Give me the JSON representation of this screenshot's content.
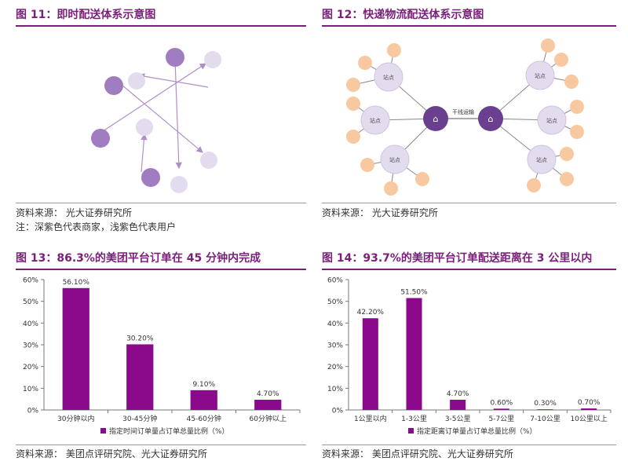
{
  "fig11": {
    "title": "图 11：即时配送体系示意图",
    "source": "资料来源：  光大证券研究所",
    "note": "注：深紫色代表商家，浅紫色代表用户"
  },
  "fig12": {
    "title": "图 12：快递物流配送体系示意图",
    "source": "资料来源：  光大证券研究所",
    "trunk_label": "干线运输",
    "station_label": "站点"
  },
  "colors": {
    "accent": "#7a1f7a",
    "bar": "#8b0a8b",
    "merchant": "#a07cc0",
    "user": "#e3dcef",
    "hub": "#6b3f8f",
    "leaf": "#f8c9a0"
  },
  "chart_data": [
    {
      "type": "bar",
      "title": "图 13：86.3%的美团平台订单在 45 分钟内完成",
      "categories": [
        "30分钟以内",
        "30-45分钟",
        "45-60分钟",
        "60分钟以上"
      ],
      "values": [
        56.1,
        30.2,
        9.1,
        4.7
      ],
      "value_labels": [
        "56.10%",
        "30.20%",
        "9.10%",
        "4.70%"
      ],
      "yticks": [
        "0%",
        "10%",
        "20%",
        "30%",
        "40%",
        "50%",
        "60%"
      ],
      "ylim": [
        0,
        60
      ],
      "legend": "指定时间订单量占订单总量比例（%）",
      "legend_position": "bottom",
      "grid": false,
      "source": "资料来源：  美团点评研究院、光大证券研究所"
    },
    {
      "type": "bar",
      "title": "图 14：93.7%的美团平台订单配送距离在 3 公里以内",
      "categories": [
        "1公里以内",
        "1-3公里",
        "3-5公里",
        "5-7公里",
        "7-10公里",
        "10公里以上"
      ],
      "values": [
        42.2,
        51.5,
        4.7,
        0.6,
        0.3,
        0.7
      ],
      "value_labels": [
        "42.20%",
        "51.50%",
        "4.70%",
        "0.60%",
        "0.30%",
        "0.70%"
      ],
      "yticks": [
        "0%",
        "10%",
        "20%",
        "30%",
        "40%",
        "50%",
        "60%"
      ],
      "ylim": [
        0,
        60
      ],
      "legend": "指定距离订单量占订单总量比例（%）",
      "legend_position": "bottom",
      "grid": false,
      "source": "资料来源：  美团点评研究院、光大证券研究所"
    }
  ]
}
